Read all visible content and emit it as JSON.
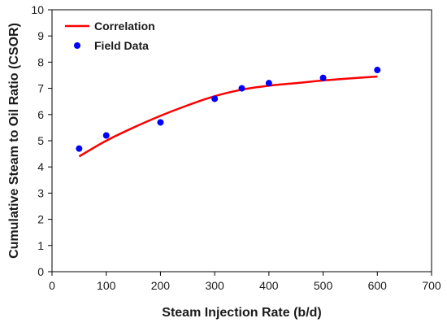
{
  "chart_data": {
    "type": "scatter",
    "xlabel": "Steam Injection Rate (b/d)",
    "ylabel": "Cumulative Steam to Oil Ratio (CSOR)",
    "xlim": [
      0,
      700
    ],
    "ylim": [
      0,
      10
    ],
    "xticks": [
      0,
      100,
      200,
      300,
      400,
      500,
      600,
      700
    ],
    "yticks": [
      0,
      1,
      2,
      3,
      4,
      5,
      6,
      7,
      8,
      9,
      10
    ],
    "grid": false,
    "legend_position": "top-left",
    "series": [
      {
        "name": "Correlation",
        "kind": "line",
        "color": "#ff0000",
        "x": [
          50,
          100,
          150,
          200,
          250,
          300,
          350,
          400,
          450,
          500,
          550,
          600
        ],
        "y": [
          4.4,
          5.0,
          5.5,
          5.95,
          6.35,
          6.7,
          6.95,
          7.1,
          7.2,
          7.3,
          7.38,
          7.45
        ]
      },
      {
        "name": "Field Data",
        "kind": "points",
        "color": "#0000ff",
        "x": [
          50,
          100,
          200,
          300,
          350,
          400,
          500,
          600
        ],
        "y": [
          4.7,
          5.2,
          5.7,
          6.6,
          7.0,
          7.2,
          7.4,
          7.7
        ]
      }
    ]
  }
}
